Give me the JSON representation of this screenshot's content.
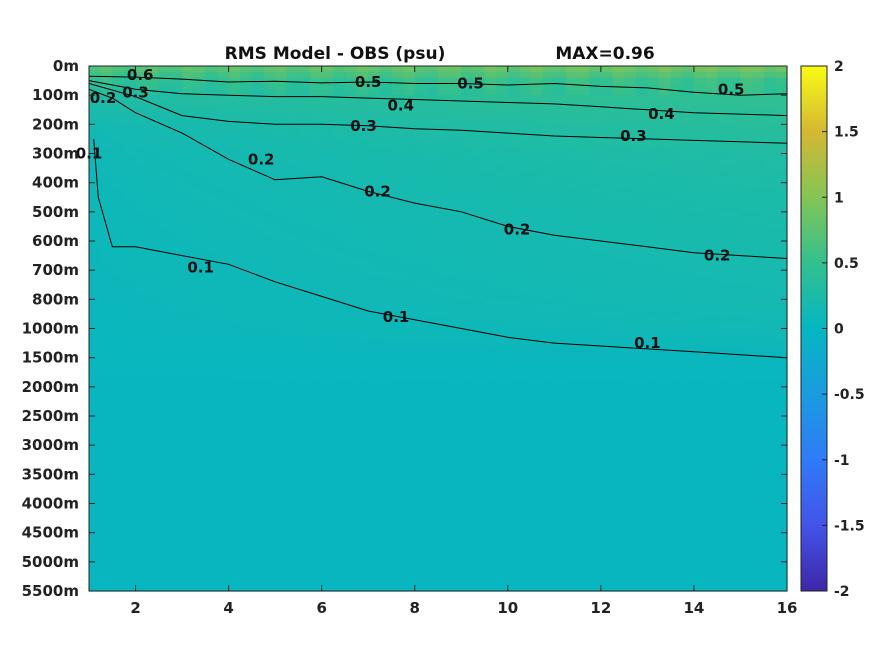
{
  "chart_data": {
    "type": "heatmap",
    "title": "RMS Model - OBS (psu)",
    "max_annotation": "MAX=0.96",
    "xlabel": "",
    "ylabel": "",
    "xlim": [
      1,
      16
    ],
    "x_ticks": [
      2,
      4,
      6,
      8,
      10,
      12,
      14,
      16
    ],
    "x_tick_labels": [
      "2",
      "4",
      "6",
      "8",
      "10",
      "12",
      "14",
      "16"
    ],
    "y_tick_labels": [
      "0m",
      "100m",
      "200m",
      "300m",
      "400m",
      "500m",
      "600m",
      "700m",
      "800m",
      "1000m",
      "1500m",
      "2000m",
      "2500m",
      "3000m",
      "3500m",
      "4000m",
      "4500m",
      "5000m",
      "5500m"
    ],
    "colorbar": {
      "range": [
        -2,
        2
      ],
      "ticks": [
        2,
        1.5,
        1,
        0.5,
        0,
        -0.5,
        -1,
        -1.5,
        -2
      ],
      "tick_labels": [
        "2",
        "1.5",
        "1",
        "0.5",
        "0",
        "-0.5",
        "-1",
        "-1.5",
        "-2"
      ],
      "colormap": "parula"
    },
    "field_profile": {
      "depth_index": [
        0,
        0.5,
        1,
        2,
        3,
        4,
        5,
        6,
        7,
        8,
        9,
        10,
        11,
        12,
        13,
        14,
        15,
        16,
        17,
        18
      ],
      "value_at_x1": [
        0.7,
        0.45,
        0.28,
        0.14,
        0.1,
        0.09,
        0.08,
        0.07,
        0.06,
        0.05,
        0.04,
        0.03,
        0.02,
        0.02,
        0.02,
        0.02,
        0.02,
        0.02,
        0.02,
        0.02
      ],
      "value_at_x16": [
        0.96,
        0.55,
        0.48,
        0.38,
        0.3,
        0.26,
        0.23,
        0.21,
        0.19,
        0.17,
        0.13,
        0.05,
        0.02,
        0.02,
        0.02,
        0.02,
        0.02,
        0.02,
        0.02,
        0.02
      ]
    },
    "contours": [
      {
        "level": 0.5,
        "label": "0.5",
        "x": [
          1,
          2,
          3,
          4,
          5,
          6,
          7,
          8,
          9,
          10,
          11,
          12,
          13,
          14,
          15,
          16
        ],
        "depth_index": [
          0.35,
          0.38,
          0.45,
          0.55,
          0.52,
          0.58,
          0.55,
          0.6,
          0.6,
          0.65,
          0.6,
          0.7,
          0.75,
          0.9,
          1.0,
          0.95
        ]
      },
      {
        "level": 0.4,
        "label": "0.4",
        "x": [
          1,
          2,
          3,
          4,
          5,
          6,
          7,
          8,
          9,
          10,
          11,
          12,
          13,
          14,
          15,
          16
        ],
        "depth_index": [
          0.5,
          0.8,
          0.95,
          1.0,
          1.05,
          1.05,
          1.1,
          1.15,
          1.2,
          1.25,
          1.3,
          1.4,
          1.5,
          1.6,
          1.65,
          1.7
        ]
      },
      {
        "level": 0.3,
        "label": "0.3",
        "x": [
          1,
          2,
          3,
          4,
          5,
          6,
          7,
          8,
          9,
          10,
          11,
          12,
          13,
          14,
          15,
          16
        ],
        "depth_index": [
          0.6,
          1.05,
          1.7,
          1.9,
          2.0,
          2.0,
          2.05,
          2.15,
          2.2,
          2.3,
          2.4,
          2.45,
          2.5,
          2.55,
          2.6,
          2.65
        ]
      },
      {
        "level": 0.2,
        "label": "0.2",
        "x": [
          1,
          1.5,
          2,
          3,
          4,
          5,
          6,
          7,
          8,
          9,
          10,
          11,
          12,
          13,
          14,
          15,
          16
        ],
        "depth_index": [
          0.8,
          1.1,
          1.6,
          2.3,
          3.2,
          3.9,
          3.8,
          4.3,
          4.7,
          5.0,
          5.5,
          5.8,
          6.0,
          6.2,
          6.4,
          6.5,
          6.6
        ]
      },
      {
        "level": 0.1,
        "label": "0.1",
        "x": [
          1.1,
          1.2,
          1.5,
          2,
          3,
          4,
          5,
          6,
          7,
          8,
          9,
          10,
          11,
          12,
          13,
          14,
          15,
          16
        ],
        "depth_index": [
          2.5,
          4.5,
          6.2,
          6.2,
          6.5,
          6.8,
          7.4,
          7.9,
          8.4,
          8.7,
          9.0,
          9.3,
          9.5,
          9.6,
          9.7,
          9.8,
          9.9,
          10.0
        ]
      }
    ],
    "contour_labels": [
      {
        "text": "0.5",
        "x": 7.0,
        "depth_index": 0.55
      },
      {
        "text": "0.5",
        "x": 9.2,
        "depth_index": 0.6
      },
      {
        "text": "0.5",
        "x": 14.8,
        "depth_index": 0.8
      },
      {
        "text": "0.6",
        "x": 2.1,
        "depth_index": 0.3
      },
      {
        "text": "0.3",
        "x": 2.0,
        "depth_index": 0.9
      },
      {
        "text": "0.2",
        "x": 1.3,
        "depth_index": 1.1
      },
      {
        "text": "0.4",
        "x": 7.7,
        "depth_index": 1.35
      },
      {
        "text": "0.4",
        "x": 13.3,
        "depth_index": 1.65
      },
      {
        "text": "0.3",
        "x": 6.9,
        "depth_index": 2.05
      },
      {
        "text": "0.3",
        "x": 12.7,
        "depth_index": 2.4
      },
      {
        "text": "0.1",
        "x": 1.0,
        "depth_index": 3.0
      },
      {
        "text": "0.2",
        "x": 4.7,
        "depth_index": 3.2
      },
      {
        "text": "0.2",
        "x": 7.2,
        "depth_index": 4.3
      },
      {
        "text": "0.2",
        "x": 10.2,
        "depth_index": 5.6
      },
      {
        "text": "0.2",
        "x": 14.5,
        "depth_index": 6.5
      },
      {
        "text": "0.1",
        "x": 3.4,
        "depth_index": 6.9
      },
      {
        "text": "0.1",
        "x": 7.6,
        "depth_index": 8.6
      },
      {
        "text": "0.1",
        "x": 13.0,
        "depth_index": 9.5
      }
    ]
  }
}
